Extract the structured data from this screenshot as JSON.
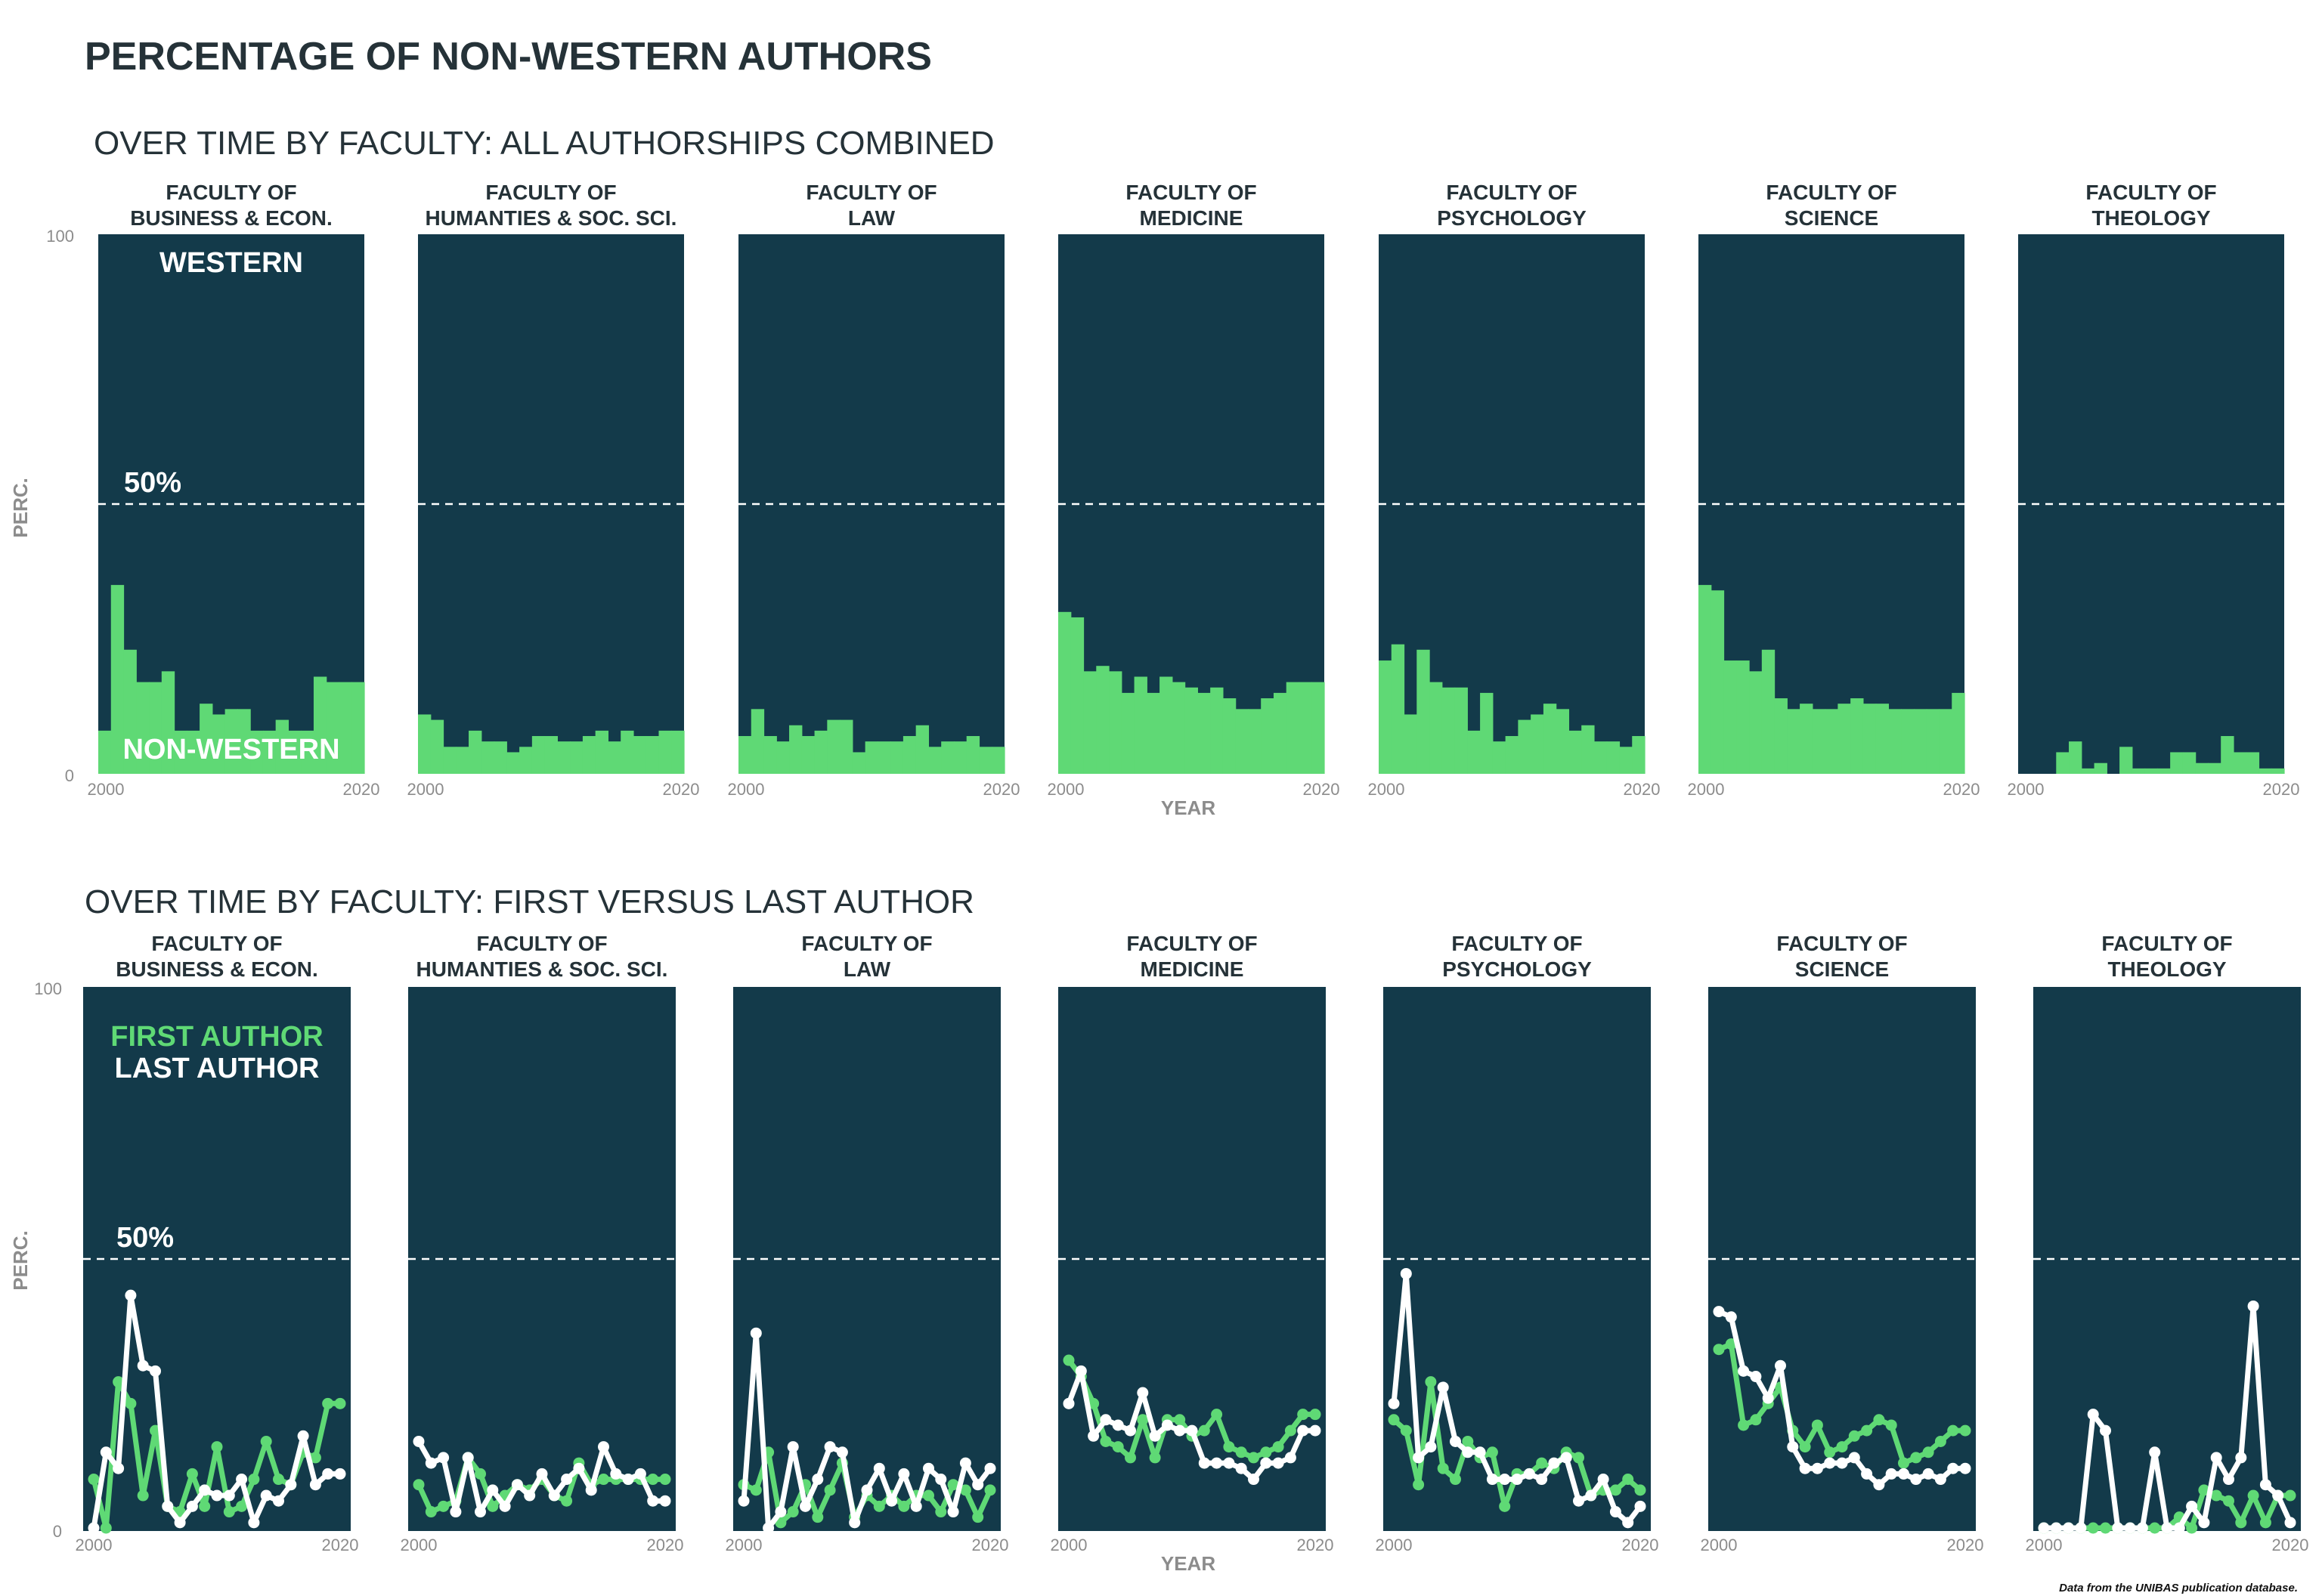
{
  "title": "PERCENTAGE OF NON-WESTERN AUTHORS",
  "caption": "Data from the UNIBAS publication database.",
  "colors": {
    "panel": "#133a4a",
    "non_western": "#5fd975",
    "first": "#5fd975",
    "last": "#ffffff",
    "title": "#253238"
  },
  "top": {
    "subtitle": "OVER TIME BY FACULTY: ALL AUTHORSHIPS COMBINED",
    "ylabel": "PERC.",
    "xlabel": "YEAR",
    "y_ticks": [
      "0",
      "100"
    ],
    "x_ticks": [
      "2000",
      "2020"
    ],
    "ref_label": "50%",
    "label_western": "WESTERN",
    "label_non_western": "NON-WESTERN"
  },
  "bottom": {
    "subtitle": "OVER TIME BY FACULTY: FIRST VERSUS LAST AUTHOR",
    "ylabel": "PERC.",
    "xlabel": "YEAR",
    "y_ticks": [
      "0",
      "100"
    ],
    "x_ticks": [
      "2000",
      "2020"
    ],
    "ref_label": "50%",
    "legend_first": "FIRST AUTHOR",
    "legend_last": "LAST AUTHOR"
  },
  "chart_data": [
    {
      "type": "area",
      "title": "OVER TIME BY FACULTY: ALL AUTHORSHIPS COMBINED",
      "xlabel": "YEAR",
      "ylabel": "PERC.",
      "ylim": [
        0,
        100
      ],
      "xlim": [
        2000,
        2020
      ],
      "x": [
        2000,
        2001,
        2002,
        2003,
        2004,
        2005,
        2006,
        2007,
        2008,
        2009,
        2010,
        2011,
        2012,
        2013,
        2014,
        2015,
        2016,
        2017,
        2018,
        2019,
        2020
      ],
      "reference_line": 50,
      "facets": [
        {
          "name": "FACULTY OF\nBUSINESS & ECON.",
          "values": [
            8,
            35,
            23,
            17,
            17,
            19,
            8,
            8,
            13,
            11,
            12,
            12,
            8,
            8,
            10,
            8,
            8,
            18,
            17,
            17,
            17
          ]
        },
        {
          "name": "FACULTY OF\nHUMANTIES & SOC. SCI.",
          "values": [
            11,
            10,
            5,
            5,
            8,
            6,
            6,
            4,
            5,
            7,
            7,
            6,
            6,
            7,
            8,
            6,
            8,
            7,
            7,
            8,
            8
          ]
        },
        {
          "name": "FACULTY OF\nLAW",
          "values": [
            7,
            12,
            7,
            6,
            9,
            7,
            8,
            10,
            10,
            4,
            6,
            6,
            6,
            7,
            9,
            5,
            6,
            6,
            7,
            5,
            5
          ]
        },
        {
          "name": "FACULTY OF\nMEDICINE",
          "values": [
            30,
            29,
            19,
            20,
            19,
            15,
            18,
            15,
            18,
            17,
            16,
            15,
            16,
            14,
            12,
            12,
            14,
            15,
            17,
            17,
            17
          ]
        },
        {
          "name": "FACULTY OF\nPSYCHOLOGY",
          "values": [
            21,
            24,
            11,
            23,
            17,
            16,
            16,
            8,
            15,
            6,
            7,
            10,
            11,
            13,
            12,
            8,
            9,
            6,
            6,
            5,
            7
          ]
        },
        {
          "name": "FACULTY OF\nSCIENCE",
          "values": [
            35,
            34,
            21,
            21,
            19,
            23,
            14,
            12,
            13,
            12,
            12,
            13,
            14,
            13,
            13,
            12,
            12,
            12,
            12,
            12,
            15
          ]
        },
        {
          "name": "FACULTY OF\nTHEOLOGY",
          "values": [
            0,
            0,
            0,
            4,
            6,
            1,
            2,
            0,
            5,
            1,
            1,
            1,
            4,
            4,
            2,
            2,
            7,
            4,
            4,
            1,
            1
          ]
        }
      ]
    },
    {
      "type": "line",
      "title": "OVER TIME BY FACULTY: FIRST VERSUS LAST AUTHOR",
      "xlabel": "YEAR",
      "ylabel": "PERC.",
      "ylim": [
        0,
        100
      ],
      "xlim": [
        2000,
        2020
      ],
      "x": [
        2000,
        2001,
        2002,
        2003,
        2004,
        2005,
        2006,
        2007,
        2008,
        2009,
        2010,
        2011,
        2012,
        2013,
        2014,
        2015,
        2016,
        2017,
        2018,
        2019,
        2020
      ],
      "reference_line": 50,
      "legend": [
        "FIRST AUTHOR",
        "LAST AUTHOR"
      ],
      "facets": [
        {
          "name": "FACULTY OF\nBUSINESS & ECON.",
          "series": [
            {
              "name": "FIRST AUTHOR",
              "values": [
                9,
                0,
                27,
                23,
                6,
                18,
                4,
                3,
                10,
                4,
                15,
                3,
                4,
                9,
                16,
                9,
                8,
                14,
                13,
                23,
                23
              ]
            },
            {
              "name": "LAST AUTHOR",
              "values": [
                0,
                14,
                11,
                43,
                30,
                29,
                4,
                1,
                4,
                7,
                6,
                6,
                9,
                1,
                6,
                5,
                8,
                17,
                8,
                10,
                10
              ]
            }
          ]
        },
        {
          "name": "FACULTY OF\nHUMANTIES & SOC. SCI.",
          "series": [
            {
              "name": "FIRST AUTHOR",
              "values": [
                8,
                3,
                4,
                5,
                13,
                10,
                4,
                6,
                8,
                7,
                9,
                6,
                5,
                12,
                8,
                9,
                9,
                9,
                9,
                9,
                9
              ]
            },
            {
              "name": "LAST AUTHOR",
              "values": [
                16,
                12,
                13,
                3,
                13,
                3,
                7,
                4,
                8,
                6,
                10,
                6,
                9,
                11,
                7,
                15,
                10,
                9,
                10,
                5,
                5
              ]
            }
          ]
        },
        {
          "name": "FACULTY OF\nLAW",
          "series": [
            {
              "name": "FIRST AUTHOR",
              "values": [
                8,
                7,
                14,
                1,
                3,
                8,
                2,
                7,
                12,
                2,
                6,
                4,
                6,
                4,
                6,
                6,
                3,
                8,
                7,
                2,
                7
              ]
            },
            {
              "name": "LAST AUTHOR",
              "values": [
                5,
                36,
                0,
                3,
                15,
                4,
                9,
                15,
                14,
                1,
                7,
                11,
                5,
                10,
                4,
                11,
                9,
                3,
                12,
                8,
                11
              ]
            }
          ]
        },
        {
          "name": "FACULTY OF\nMEDICINE",
          "series": [
            {
              "name": "FIRST AUTHOR",
              "values": [
                31,
                28,
                23,
                16,
                15,
                13,
                20,
                13,
                20,
                20,
                17,
                18,
                21,
                15,
                14,
                13,
                14,
                15,
                18,
                21,
                21
              ]
            },
            {
              "name": "LAST AUTHOR",
              "values": [
                23,
                29,
                17,
                20,
                19,
                18,
                25,
                17,
                19,
                18,
                18,
                12,
                12,
                12,
                11,
                9,
                12,
                12,
                13,
                18,
                18
              ]
            }
          ]
        },
        {
          "name": "FACULTY OF\nPSYCHOLOGY",
          "series": [
            {
              "name": "FIRST AUTHOR",
              "values": [
                20,
                18,
                8,
                27,
                11,
                9,
                16,
                13,
                14,
                4,
                10,
                10,
                12,
                11,
                14,
                13,
                6,
                7,
                7,
                9,
                7
              ]
            },
            {
              "name": "LAST AUTHOR",
              "values": [
                23,
                47,
                13,
                15,
                26,
                16,
                14,
                14,
                9,
                9,
                9,
                10,
                9,
                12,
                13,
                5,
                6,
                9,
                3,
                1,
                4
              ]
            }
          ]
        },
        {
          "name": "FACULTY OF\nSCIENCE",
          "series": [
            {
              "name": "FIRST AUTHOR",
              "values": [
                33,
                34,
                19,
                20,
                23,
                26,
                18,
                15,
                19,
                14,
                15,
                17,
                18,
                20,
                19,
                12,
                13,
                14,
                16,
                18,
                18
              ]
            },
            {
              "name": "LAST AUTHOR",
              "values": [
                40,
                39,
                29,
                28,
                24,
                30,
                15,
                11,
                11,
                12,
                12,
                13,
                10,
                8,
                10,
                10,
                9,
                10,
                9,
                11,
                11
              ]
            }
          ]
        },
        {
          "name": "FACULTY OF\nTHEOLOGY",
          "series": [
            {
              "name": "FIRST AUTHOR",
              "values": [
                0,
                0,
                0,
                0,
                0,
                0,
                0,
                0,
                0,
                0,
                0,
                2,
                0,
                7,
                6,
                5,
                1,
                6,
                1,
                6,
                6
              ]
            },
            {
              "name": "LAST AUTHOR",
              "values": [
                0,
                0,
                0,
                0,
                21,
                18,
                0,
                0,
                0,
                14,
                0,
                0,
                4,
                1,
                13,
                9,
                13,
                41,
                8,
                6,
                1
              ]
            }
          ]
        }
      ]
    }
  ]
}
